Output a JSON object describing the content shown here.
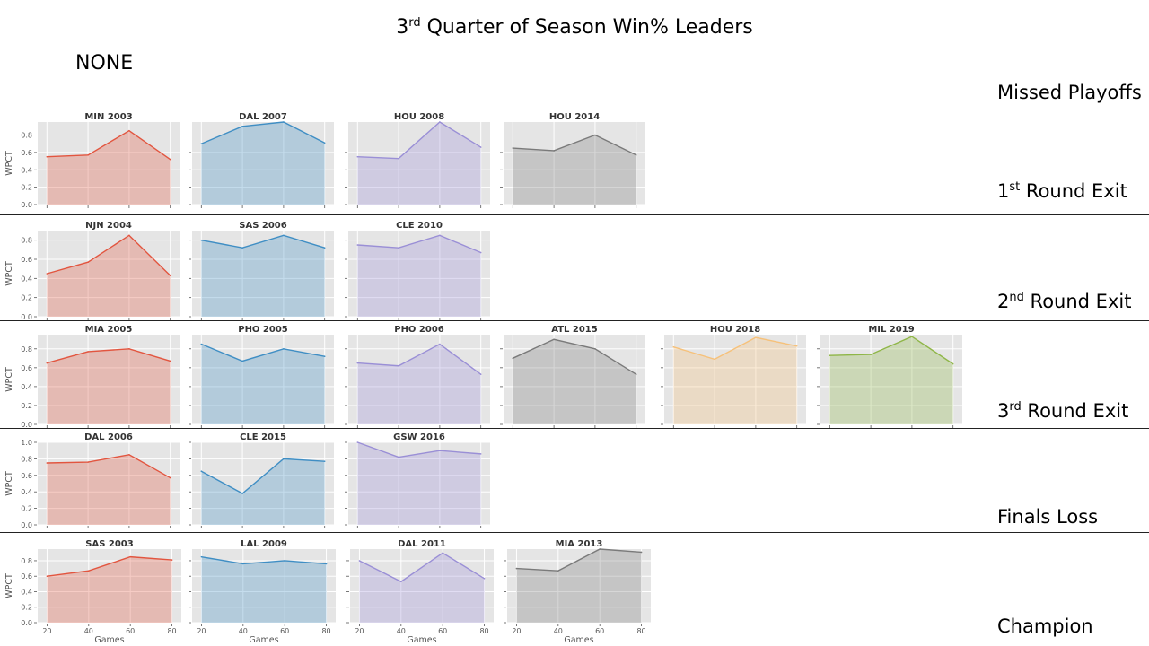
{
  "title_main": "3",
  "title_sup": "rd",
  "title_rest": " Quarter of Season Win% Leaders",
  "none_label": "NONE",
  "colors": {
    "red": "#e2553f",
    "blue": "#3f8ec4",
    "purple": "#9a8fd6",
    "gray": "#7a7a7a",
    "orange": "#f6c17a",
    "green": "#8fb648",
    "panel_bg": "#e5e5e5",
    "grid": "#ffffff"
  },
  "row_labels": [
    {
      "pre": "Missed Playoffs",
      "sup": "",
      "post": ""
    },
    {
      "pre": "1",
      "sup": "st",
      "post": " Round Exit"
    },
    {
      "pre": "2",
      "sup": "nd",
      "post": " Round Exit"
    },
    {
      "pre": "3",
      "sup": "rd",
      "post": " Round Exit"
    },
    {
      "pre": "Finals Loss",
      "sup": "",
      "post": ""
    },
    {
      "pre": "Champion",
      "sup": "",
      "post": ""
    }
  ],
  "axis_labels": {
    "y": "WPCT",
    "x": "Games"
  },
  "chart_data": {
    "type": "area",
    "x": [
      20,
      40,
      60,
      80
    ],
    "x_ticks": [
      20,
      40,
      60,
      80
    ],
    "ylabel": "WPCT",
    "xlabel": "Games",
    "rows": [
      {
        "outcome": "1st Round Exit",
        "ylim": [
          0,
          0.95
        ],
        "y_ticks": [
          0.0,
          0.2,
          0.4,
          0.6,
          0.8
        ],
        "panels": [
          {
            "title": "MIN 2003",
            "color": "red",
            "values": [
              0.55,
              0.57,
              0.85,
              0.52
            ]
          },
          {
            "title": "DAL 2007",
            "color": "blue",
            "values": [
              0.7,
              0.9,
              0.95,
              0.71
            ]
          },
          {
            "title": "HOU 2008",
            "color": "purple",
            "values": [
              0.55,
              0.53,
              0.95,
              0.66
            ]
          },
          {
            "title": "HOU 2014",
            "color": "gray",
            "values": [
              0.65,
              0.62,
              0.8,
              0.57
            ]
          }
        ]
      },
      {
        "outcome": "2nd Round Exit",
        "ylim": [
          0,
          0.9
        ],
        "y_ticks": [
          0.0,
          0.2,
          0.4,
          0.6,
          0.8
        ],
        "panels": [
          {
            "title": "NJN 2004",
            "color": "red",
            "values": [
              0.45,
              0.57,
              0.85,
              0.43
            ]
          },
          {
            "title": "SAS 2006",
            "color": "blue",
            "values": [
              0.8,
              0.72,
              0.85,
              0.72
            ]
          },
          {
            "title": "CLE 2010",
            "color": "purple",
            "values": [
              0.75,
              0.72,
              0.85,
              0.67
            ]
          }
        ]
      },
      {
        "outcome": "3rd Round Exit",
        "ylim": [
          0,
          0.95
        ],
        "y_ticks": [
          0.0,
          0.2,
          0.4,
          0.6,
          0.8
        ],
        "panels": [
          {
            "title": "MIA 2005",
            "color": "red",
            "values": [
              0.65,
              0.77,
              0.8,
              0.67
            ]
          },
          {
            "title": "PHO 2005",
            "color": "blue",
            "values": [
              0.85,
              0.67,
              0.8,
              0.72
            ]
          },
          {
            "title": "PHO 2006",
            "color": "purple",
            "values": [
              0.65,
              0.62,
              0.85,
              0.53
            ]
          },
          {
            "title": "ATL 2015",
            "color": "gray",
            "values": [
              0.7,
              0.9,
              0.8,
              0.53
            ]
          },
          {
            "title": "HOU 2018",
            "color": "orange",
            "values": [
              0.82,
              0.69,
              0.92,
              0.83
            ]
          },
          {
            "title": "MIL 2019",
            "color": "green",
            "values": [
              0.73,
              0.74,
              0.93,
              0.64
            ]
          }
        ]
      },
      {
        "outcome": "Finals Loss",
        "ylim": [
          0,
          1.0
        ],
        "y_ticks": [
          0.0,
          0.2,
          0.4,
          0.6,
          0.8,
          1.0
        ],
        "panels": [
          {
            "title": "DAL 2006",
            "color": "red",
            "values": [
              0.75,
              0.76,
              0.85,
              0.57
            ]
          },
          {
            "title": "CLE 2015",
            "color": "blue",
            "values": [
              0.65,
              0.38,
              0.8,
              0.77
            ]
          },
          {
            "title": "GSW 2016",
            "color": "purple",
            "values": [
              1.0,
              0.82,
              0.9,
              0.86
            ]
          }
        ]
      },
      {
        "outcome": "Champion",
        "ylim": [
          0,
          0.95
        ],
        "y_ticks": [
          0.0,
          0.2,
          0.4,
          0.6,
          0.8
        ],
        "panels": [
          {
            "title": "SAS 2003",
            "color": "red",
            "values": [
              0.6,
              0.67,
              0.85,
              0.81
            ]
          },
          {
            "title": "LAL 2009",
            "color": "blue",
            "values": [
              0.85,
              0.76,
              0.8,
              0.76
            ]
          },
          {
            "title": "DAL 2011",
            "color": "purple",
            "values": [
              0.8,
              0.53,
              0.9,
              0.57
            ]
          },
          {
            "title": "MIA 2013",
            "color": "gray",
            "values": [
              0.7,
              0.67,
              0.95,
              0.91
            ]
          }
        ]
      }
    ]
  }
}
